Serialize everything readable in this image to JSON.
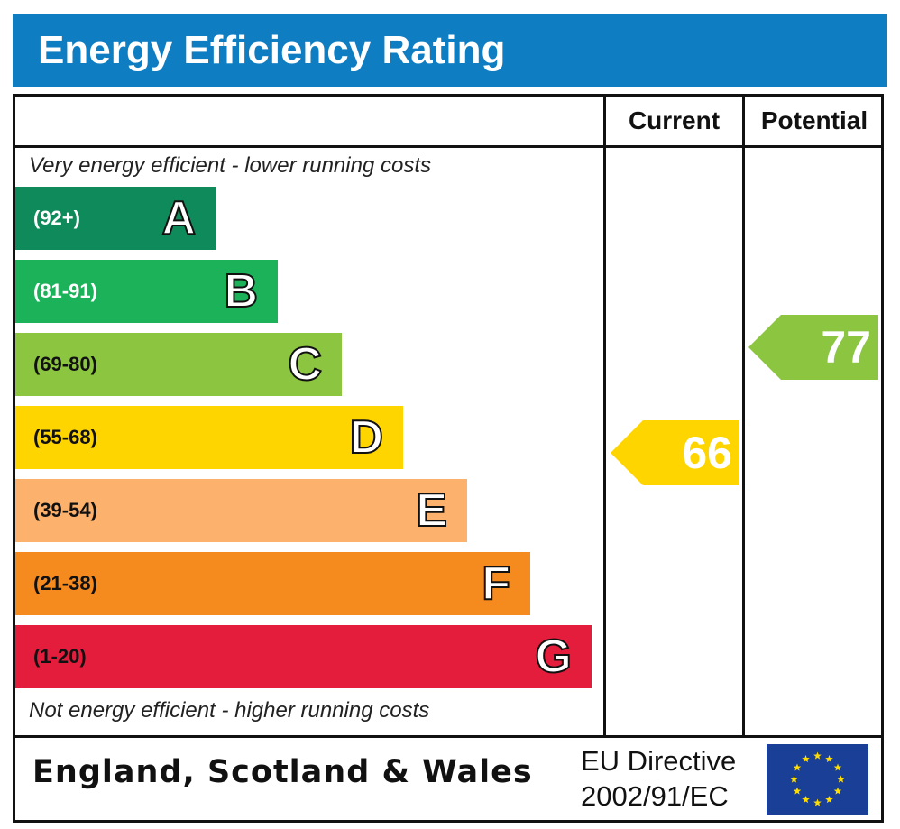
{
  "title": "Energy Efficiency Rating",
  "columns": {
    "current": "Current",
    "potential": "Potential"
  },
  "notes": {
    "top": "Very energy efficient - lower running costs",
    "bottom": "Not energy efficient - higher running costs"
  },
  "footer": {
    "country": "England, Scotland & Wales",
    "directive_line1": "EU Directive",
    "directive_line2": "2002/91/EC"
  },
  "colors": {
    "title_bar": "#0e7dc2",
    "A": "#0f8a5a",
    "B": "#1bb25a",
    "C": "#8cc540",
    "D": "#ffd500",
    "E": "#fcb26c",
    "F": "#f58a1f",
    "G": "#e51d3c",
    "eu_flag": "#1a3f97",
    "eu_stars": "#ffdd00"
  },
  "chart_data": {
    "type": "bar",
    "categories": [
      "A",
      "B",
      "C",
      "D",
      "E",
      "F",
      "G"
    ],
    "bands": [
      {
        "letter": "A",
        "range": "(92+)",
        "min": 92,
        "max": 100,
        "range_color": "#ffffff"
      },
      {
        "letter": "B",
        "range": "(81-91)",
        "min": 81,
        "max": 91,
        "range_color": "#ffffff"
      },
      {
        "letter": "C",
        "range": "(69-80)",
        "min": 69,
        "max": 80,
        "range_color": "#111111"
      },
      {
        "letter": "D",
        "range": "(55-68)",
        "min": 55,
        "max": 68,
        "range_color": "#111111"
      },
      {
        "letter": "E",
        "range": "(39-54)",
        "min": 39,
        "max": 54,
        "range_color": "#111111"
      },
      {
        "letter": "F",
        "range": "(21-38)",
        "min": 21,
        "max": 38,
        "range_color": "#111111"
      },
      {
        "letter": "G",
        "range": "(1-20)",
        "min": 1,
        "max": 20,
        "range_color": "#111111"
      }
    ],
    "current": {
      "value": 66,
      "band": "D"
    },
    "potential": {
      "value": 77,
      "band": "C"
    }
  }
}
